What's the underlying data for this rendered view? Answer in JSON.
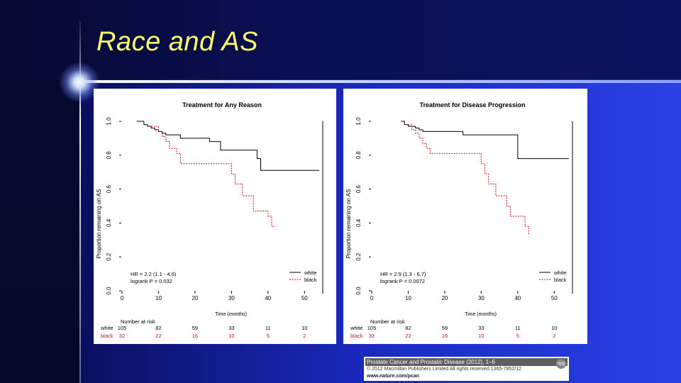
{
  "slide": {
    "title": "Race and AS",
    "title_color": "#ffff66"
  },
  "citation": {
    "journal": "Prostate Cancer and Prostatic Disease (2012), 1–6",
    "copyright": "© 2012 Macmillan Publishers Limited  All rights reserved 1365-7852/12",
    "url": "www.nature.com/pcan",
    "logo_text": "npg"
  },
  "chart_data": [
    {
      "type": "line",
      "step": true,
      "title": "Treatment for Any Reason",
      "xlabel": "Time (months)",
      "ylabel": "Proportion remaining on AS",
      "xticks": [
        0,
        10,
        20,
        30,
        40,
        50
      ],
      "yticks": [
        0.0,
        0.2,
        0.4,
        0.6,
        0.8,
        1.0
      ],
      "ytick_labels": [
        "0.0",
        "0.2",
        "0.4",
        "0.6",
        "0.8",
        "1.0"
      ],
      "xlim": [
        0,
        55
      ],
      "ylim": [
        0,
        1
      ],
      "series": [
        {
          "name": "white",
          "color": "#000000",
          "dash": false,
          "x": [
            4,
            6,
            7,
            8,
            9,
            10,
            11,
            12,
            16,
            24,
            27,
            37,
            38,
            54
          ],
          "y": [
            1.0,
            0.98,
            0.97,
            0.96,
            0.95,
            0.94,
            0.93,
            0.92,
            0.9,
            0.88,
            0.83,
            0.78,
            0.71,
            0.71
          ]
        },
        {
          "name": "black",
          "color": "#cc1111",
          "dash": true,
          "x": [
            8,
            10,
            11,
            12,
            13,
            15,
            16,
            29,
            30,
            31,
            33,
            36,
            40,
            41,
            42
          ],
          "y": [
            0.97,
            0.94,
            0.91,
            0.88,
            0.84,
            0.81,
            0.75,
            0.75,
            0.69,
            0.63,
            0.56,
            0.47,
            0.44,
            0.38,
            0.38
          ]
        }
      ],
      "legend": {
        "position": "bottom-right",
        "labels": [
          "white",
          "black"
        ]
      },
      "annotations": [
        "HR = 2.2 (1.1 - 4.6)",
        "logrank P = 0.032"
      ],
      "risk_table": {
        "title": "Number at risk",
        "rows": [
          {
            "label": "white",
            "color": "#000000",
            "values": [
              "105",
              "82",
              "59",
              "33",
              "11",
              "10"
            ]
          },
          {
            "label": "black",
            "color": "#cc1111",
            "values": [
              "32",
              "22",
              "16",
              "10",
              "5",
              "2"
            ]
          }
        ]
      }
    },
    {
      "type": "line",
      "step": true,
      "title": "Treatment for Disease Progression",
      "xlabel": "Time (months)",
      "ylabel": "Proportion remaining on AS",
      "xticks": [
        0,
        10,
        20,
        30,
        40,
        50
      ],
      "yticks": [
        0.0,
        0.2,
        0.4,
        0.6,
        0.8,
        1.0
      ],
      "ytick_labels": [
        "0.0",
        "0.2",
        "0.4",
        "0.6",
        "0.8",
        "1.0"
      ],
      "xlim": [
        0,
        55
      ],
      "ylim": [
        0,
        1
      ],
      "series": [
        {
          "name": "white",
          "color": "#000000",
          "dash": false,
          "x": [
            8,
            9,
            10,
            12,
            13,
            14,
            25,
            27,
            40,
            41,
            54
          ],
          "y": [
            1.0,
            0.98,
            0.97,
            0.96,
            0.95,
            0.94,
            0.92,
            0.92,
            0.78,
            0.78,
            0.78
          ],
          "segments_only": false
        },
        {
          "name": "black",
          "color": "#cc1111",
          "dash": true,
          "x": [
            10,
            11,
            12,
            13,
            14,
            15,
            16,
            29,
            30,
            31,
            32,
            34,
            37,
            38,
            42,
            43
          ],
          "y": [
            0.98,
            0.95,
            0.93,
            0.9,
            0.87,
            0.84,
            0.81,
            0.81,
            0.75,
            0.69,
            0.63,
            0.56,
            0.5,
            0.44,
            0.38,
            0.33
          ]
        }
      ],
      "legend": {
        "position": "bottom-right",
        "labels": [
          "white",
          "black"
        ]
      },
      "annotations": [
        "HR = 2.9 (1.3 - 6.7)",
        "logrank P = 0.0072"
      ],
      "risk_table": {
        "title": "Number at risk",
        "rows": [
          {
            "label": "white",
            "color": "#000000",
            "values": [
              "105",
              "82",
              "59",
              "33",
              "11",
              "10"
            ]
          },
          {
            "label": "black",
            "color": "#cc1111",
            "values": [
              "32",
              "22",
              "16",
              "10",
              "5",
              "2"
            ]
          }
        ]
      }
    }
  ]
}
